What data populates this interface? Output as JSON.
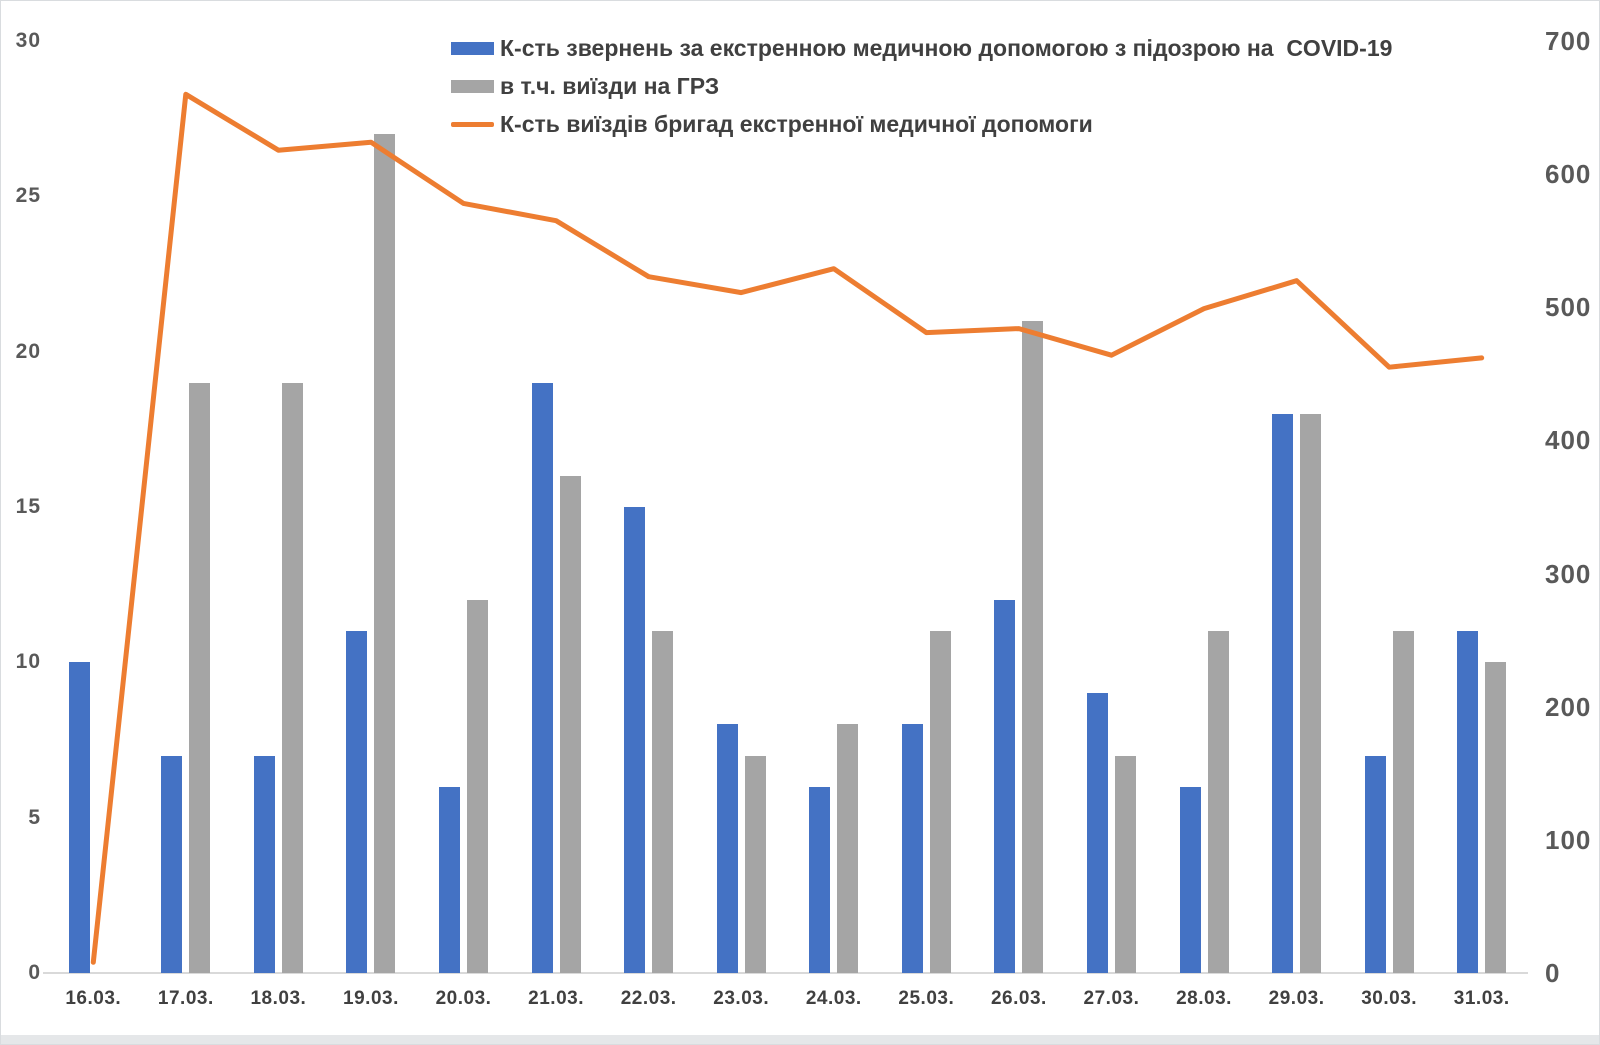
{
  "chart_data": {
    "type": "combo-bar-line",
    "categories": [
      "16.03.",
      "17.03.",
      "18.03.",
      "19.03.",
      "20.03.",
      "21.03.",
      "22.03.",
      "23.03.",
      "24.03.",
      "25.03.",
      "26.03.",
      "27.03.",
      "28.03.",
      "29.03.",
      "30.03.",
      "31.03."
    ],
    "series": [
      {
        "name": "К-сть звернень за екстренною медичною допомогою з підозрою на  COVID-19",
        "type": "bar",
        "axis": "left",
        "color": "#4472C4",
        "values": [
          10,
          7,
          7,
          11,
          6,
          19,
          15,
          8,
          6,
          8,
          12,
          9,
          6,
          18,
          7,
          11
        ]
      },
      {
        "name": "в т.ч. виїзди на ГРЗ",
        "type": "bar",
        "axis": "left",
        "color": "#A5A5A5",
        "values": [
          0,
          19,
          19,
          27,
          12,
          16,
          11,
          7,
          8,
          11,
          21,
          7,
          11,
          18,
          11,
          10
        ]
      },
      {
        "name": "К-сть виїздів бригад екстренної медичної допомоги",
        "type": "line",
        "axis": "right",
        "color": "#ED7D31",
        "values": [
          8,
          660,
          618,
          624,
          578,
          565,
          523,
          511,
          529,
          481,
          484,
          464,
          499,
          520,
          455,
          462
        ]
      }
    ],
    "left_axis": {
      "min": 0,
      "max": 30,
      "ticks": [
        0,
        5,
        10,
        15,
        20,
        25,
        30
      ]
    },
    "right_axis": {
      "min": 0,
      "max": 700,
      "ticks": [
        0,
        100,
        200,
        300,
        400,
        500,
        600,
        700
      ]
    },
    "grid": false,
    "legend_position": "top-center",
    "title": ""
  },
  "ui": {
    "axis_text_color": "#595959",
    "xlabel_text_color": "#404040",
    "baseline_color": "#D9D9D9"
  }
}
